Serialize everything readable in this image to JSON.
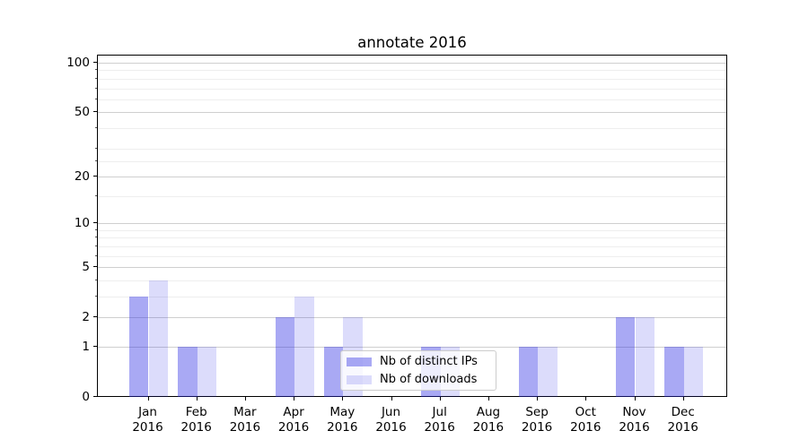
{
  "chart_data": {
    "type": "bar",
    "title": "annotate 2016",
    "x_tick_labels": [
      [
        "Jan",
        "2016"
      ],
      [
        "Feb",
        "2016"
      ],
      [
        "Mar",
        "2016"
      ],
      [
        "Apr",
        "2016"
      ],
      [
        "May",
        "2016"
      ],
      [
        "Jun",
        "2016"
      ],
      [
        "Jul",
        "2016"
      ],
      [
        "Aug",
        "2016"
      ],
      [
        "Sep",
        "2016"
      ],
      [
        "Oct",
        "2016"
      ],
      [
        "Nov",
        "2016"
      ],
      [
        "Dec",
        "2016"
      ]
    ],
    "series": [
      {
        "name": "Nb of distinct IPs",
        "values": [
          3,
          1,
          0,
          2,
          1,
          0,
          1,
          0,
          1,
          0,
          2,
          1
        ],
        "color_hex": "#a9a9f4",
        "color_rgba": "rgba(40,40,228,0.40)"
      },
      {
        "name": "Nb of downloads",
        "values": [
          4,
          1,
          0,
          3,
          2,
          0,
          1,
          0,
          1,
          0,
          2,
          1
        ],
        "color_hex": "#dcdcfa",
        "color_rgba": "rgba(40,40,228,0.16)"
      }
    ],
    "y_axis": {
      "scale": "log10(1+value)",
      "major_ticks": [
        0,
        1,
        2,
        5,
        10,
        20,
        50,
        100
      ],
      "minor_gridlines": [
        3,
        4,
        6,
        7,
        8,
        9,
        15,
        25,
        30,
        40,
        60,
        70,
        80,
        90
      ],
      "range_top_value": 111
    },
    "grid": {
      "major_color": "#cfcfcf",
      "minor_color": "#eeeeee",
      "visible": "both"
    },
    "legend": {
      "position": "lower center",
      "background": "rgba(255,255,255,0.8)",
      "border_color": "#cccccc"
    }
  }
}
